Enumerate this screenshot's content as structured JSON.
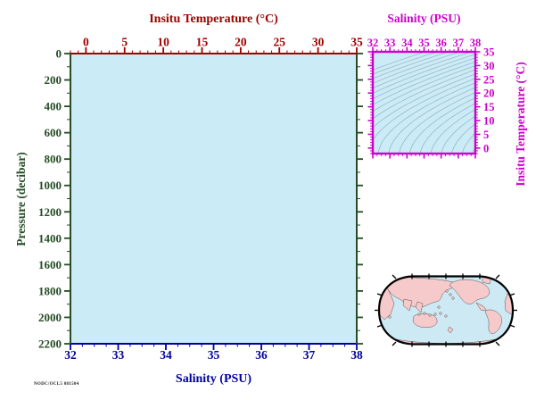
{
  "colors": {
    "temperature_axis": "#a00000",
    "salinity_axis": "#0000a0",
    "pressure_axis": "#264d26",
    "inset_frame": "#cc00cc",
    "plot_background": "#cbecf7",
    "contour_line": "#8fa9bc",
    "map_ocean": "#cde9f4",
    "map_land": "#f6c9ca",
    "map_outline": "#000000",
    "fine_print": "#222222"
  },
  "main_plot": {
    "background": "#cbecf7",
    "top_axis": {
      "title": "Insitu Temperature (°C)",
      "color": "#a00000",
      "min": -2,
      "max": 35,
      "major_labels": [
        0,
        5,
        10,
        15,
        20,
        25,
        30,
        35
      ],
      "major_step": 5,
      "minor_step": 1
    },
    "bottom_axis": {
      "title": "Salinity (PSU)",
      "color": "#0000a0",
      "min": 32,
      "max": 38,
      "major_labels": [
        32,
        33,
        34,
        35,
        36,
        37,
        38
      ],
      "major_step": 1,
      "minor_step": 0.25
    },
    "left_axis": {
      "title": "Pressure (decibar)",
      "color": "#264d26",
      "min": 0,
      "max": 2200,
      "major_labels": [
        0,
        200,
        400,
        600,
        800,
        1000,
        1200,
        1400,
        1600,
        1800,
        2000,
        2200
      ],
      "major_step": 200,
      "minor_step": 100
    }
  },
  "inset": {
    "frame_color": "#cc00cc",
    "background": "#cbecf7",
    "top_axis": {
      "title": "Salinity (PSU)",
      "min": 32,
      "max": 38,
      "major_labels": [
        32,
        33,
        34,
        35,
        36,
        37,
        38
      ],
      "major_step": 1,
      "minor_step": 0.25
    },
    "right_axis": {
      "title": "Insitu Temperature (°C)",
      "min": -2,
      "max": 35,
      "major_labels": [
        0,
        5,
        10,
        15,
        20,
        25,
        30,
        35
      ],
      "major_step": 5,
      "minor_step": 1
    },
    "contours": {
      "color": "#8fa9bc",
      "level_min": 20,
      "level_max": 30.5,
      "level_step": 0.5
    }
  },
  "map": {
    "projection": "robinson-pacific-centered",
    "ocean_color": "#cde9f4",
    "land_color": "#f6c9ca",
    "outline_color": "#000000"
  },
  "fine_print": "NODC/OCL5 081504",
  "chart_data": [
    {
      "type": "scatter",
      "title": "Empty profile plot (no data points plotted)",
      "xlabel_top": "Insitu Temperature (°C)",
      "xlabel_bottom": "Salinity (PSU)",
      "ylabel": "Pressure (decibar)",
      "x_top_range": [
        -2,
        35
      ],
      "x_top_ticks": [
        0,
        5,
        10,
        15,
        20,
        25,
        30,
        35
      ],
      "x_bottom_range": [
        32,
        38
      ],
      "x_bottom_ticks": [
        32,
        33,
        34,
        35,
        36,
        37,
        38
      ],
      "y_range": [
        0,
        2200
      ],
      "y_ticks": [
        0,
        200,
        400,
        600,
        800,
        1000,
        1200,
        1400,
        1600,
        1800,
        2000,
        2200
      ],
      "y_inverted": true,
      "grid": false,
      "series": []
    },
    {
      "type": "line",
      "title": "T-S inset with density (sigma-t) isolines",
      "xlabel": "Salinity (PSU)",
      "ylabel": "Insitu Temperature (°C)",
      "x_range": [
        32,
        38
      ],
      "x_ticks": [
        32,
        33,
        34,
        35,
        36,
        37,
        38
      ],
      "y_range": [
        -2,
        35
      ],
      "y_ticks": [
        0,
        5,
        10,
        15,
        20,
        25,
        30,
        35
      ],
      "grid": false,
      "contour_levels": [
        20.5,
        21,
        21.5,
        22,
        22.5,
        23,
        23.5,
        24,
        24.5,
        25,
        25.5,
        26,
        26.5,
        27,
        27.5,
        28,
        28.5,
        29,
        29.5,
        30
      ],
      "series": []
    }
  ]
}
